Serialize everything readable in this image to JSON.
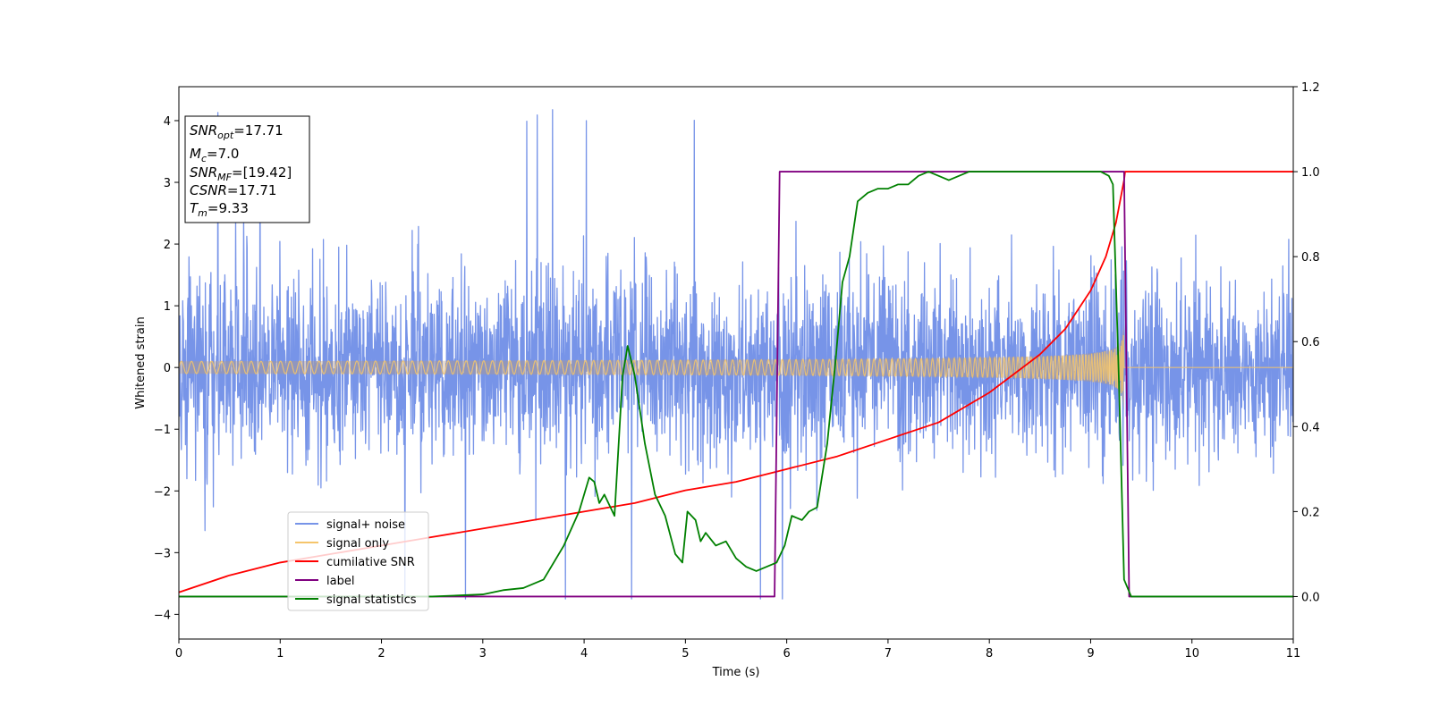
{
  "chart_data": {
    "type": "line",
    "title": "",
    "xlabel": "Time (s)",
    "ylabel": "Whitened strain",
    "xlim": [
      0,
      11
    ],
    "ylim": [
      -4.4,
      4.55
    ],
    "y2lim": [
      -0.1,
      1.2
    ],
    "x_ticks": [
      "0",
      "1",
      "2",
      "3",
      "4",
      "5",
      "6",
      "7",
      "8",
      "9",
      "10",
      "11"
    ],
    "y_ticks": [
      "−4",
      "−3",
      "−2",
      "−1",
      "0",
      "1",
      "2",
      "3",
      "4"
    ],
    "y2_ticks": [
      "0.0",
      "0.2",
      "0.4",
      "0.6",
      "0.8",
      "1.0",
      "1.2"
    ],
    "grid": false,
    "legend_position": "lower-left",
    "info_box": {
      "position": "top-left",
      "lines": [
        {
          "sym": "SNR",
          "sub": "opt",
          "rest": "=17.71"
        },
        {
          "sym": "M",
          "sub": "c",
          "rest": "=7.0"
        },
        {
          "sym": "SNR",
          "sub": "MF",
          "rest": "=[19.42]"
        },
        {
          "sym": "CSNR",
          "sub": "",
          "rest": "=17.71"
        },
        {
          "sym": "T",
          "sub": "m",
          "rest": "=9.33"
        }
      ]
    },
    "series": [
      {
        "name": "signal+ noise",
        "axis": "left",
        "color": "#7794e8",
        "style": "noisy",
        "noise_sigma": 1.05,
        "range": [
          -3.75,
          4.18
        ]
      },
      {
        "name": "signal only",
        "axis": "left",
        "color": "#f5c56b",
        "style": "chirp",
        "start_amplitude": 0.1,
        "peak_amplitude": 1.6,
        "merger_time": 9.33
      },
      {
        "name": "cumilative SNR",
        "axis": "right",
        "color": "#ff0000",
        "x": [
          0,
          0.5,
          1,
          1.5,
          2,
          2.5,
          3,
          3.5,
          4,
          4.5,
          5,
          5.5,
          6,
          6.5,
          7,
          7.5,
          8,
          8.5,
          8.75,
          9,
          9.15,
          9.25,
          9.33,
          9.34,
          11
        ],
        "y": [
          0.01,
          0.05,
          0.08,
          0.1,
          0.12,
          0.14,
          0.16,
          0.18,
          0.2,
          0.22,
          0.25,
          0.27,
          0.3,
          0.33,
          0.37,
          0.41,
          0.48,
          0.57,
          0.63,
          0.72,
          0.8,
          0.88,
          0.98,
          1.0,
          1.0
        ]
      },
      {
        "name": "label",
        "axis": "right",
        "color": "#800080",
        "x": [
          0,
          5.88,
          5.93,
          9.33,
          9.38,
          11
        ],
        "y": [
          0,
          0,
          1,
          1,
          0,
          0
        ]
      },
      {
        "name": "signal statistics",
        "axis": "right",
        "color": "#008000",
        "x": [
          0,
          0.5,
          1,
          1.5,
          2,
          2.5,
          3,
          3.2,
          3.4,
          3.6,
          3.8,
          3.95,
          4.05,
          4.1,
          4.15,
          4.2,
          4.3,
          4.38,
          4.43,
          4.5,
          4.6,
          4.7,
          4.8,
          4.9,
          4.97,
          5.02,
          5.1,
          5.15,
          5.2,
          5.3,
          5.4,
          5.5,
          5.6,
          5.7,
          5.8,
          5.9,
          5.98,
          6.05,
          6.15,
          6.22,
          6.3,
          6.4,
          6.48,
          6.55,
          6.62,
          6.7,
          6.8,
          6.9,
          7.0,
          7.1,
          7.2,
          7.3,
          7.4,
          7.5,
          7.6,
          7.7,
          7.8,
          8.0,
          8.5,
          9.0,
          9.1,
          9.18,
          9.22,
          9.28,
          9.33,
          9.4,
          9.6,
          10,
          11
        ],
        "y": [
          0.0,
          0.0,
          0.0,
          0.0,
          0.0,
          0.0,
          0.005,
          0.015,
          0.02,
          0.04,
          0.12,
          0.2,
          0.28,
          0.27,
          0.22,
          0.24,
          0.19,
          0.52,
          0.59,
          0.52,
          0.36,
          0.24,
          0.19,
          0.1,
          0.08,
          0.2,
          0.18,
          0.13,
          0.15,
          0.12,
          0.13,
          0.09,
          0.07,
          0.06,
          0.07,
          0.08,
          0.12,
          0.19,
          0.18,
          0.2,
          0.21,
          0.36,
          0.55,
          0.74,
          0.8,
          0.93,
          0.95,
          0.96,
          0.96,
          0.97,
          0.97,
          0.99,
          1.0,
          0.99,
          0.98,
          0.99,
          1.0,
          1.0,
          1.0,
          1.0,
          1.0,
          0.99,
          0.97,
          0.5,
          0.04,
          0.0,
          0.0,
          0.0,
          0.0
        ]
      }
    ]
  }
}
